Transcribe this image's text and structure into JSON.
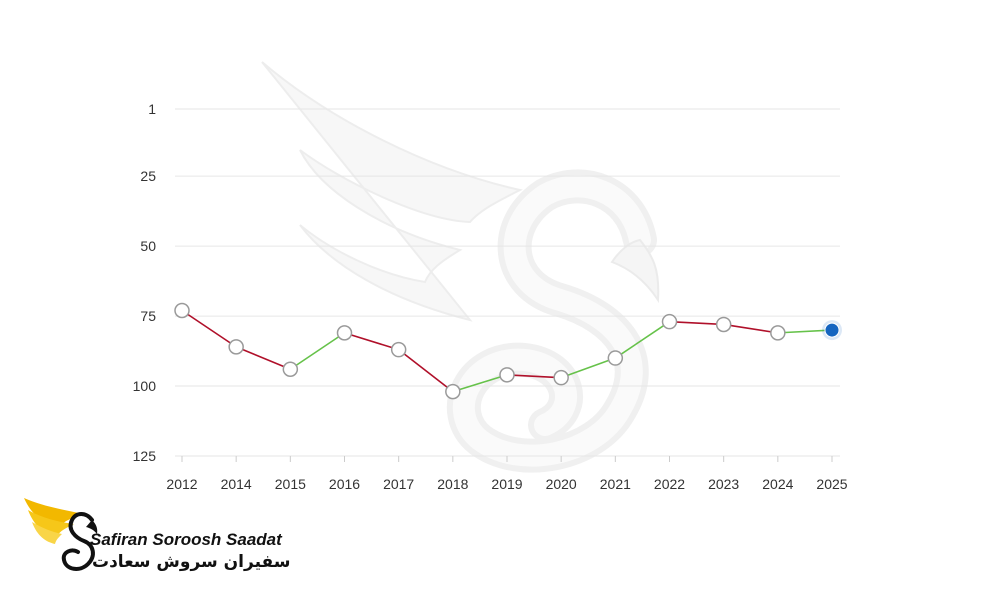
{
  "chart_data": {
    "type": "line",
    "title": "",
    "xlabel": "",
    "ylabel": "",
    "y_inverted": true,
    "ylim": [
      1,
      125
    ],
    "yticks": [
      "1",
      "25",
      "50",
      "75",
      "100",
      "125"
    ],
    "categories": [
      "2012",
      "2014",
      "2015",
      "2016",
      "2017",
      "2018",
      "2019",
      "2020",
      "2021",
      "2022",
      "2023",
      "2024",
      "2025"
    ],
    "values": [
      73,
      86,
      94,
      81,
      87,
      102,
      96,
      97,
      90,
      77,
      78,
      81,
      80
    ],
    "grid": true,
    "colors": {
      "worse": "#b0102a",
      "better": "#66c24a",
      "marker_fill": "#ffffff",
      "marker_stroke": "#9a9a9a",
      "current": "#1565c0",
      "grid": "#e6e6e6"
    }
  },
  "brand": {
    "name_en": "Safiran Soroosh Saadat",
    "name_fa": "سفیران سروش سعادت",
    "logo": "golden-winged-swan-logo",
    "watermark": "winged-swan-watermark"
  }
}
